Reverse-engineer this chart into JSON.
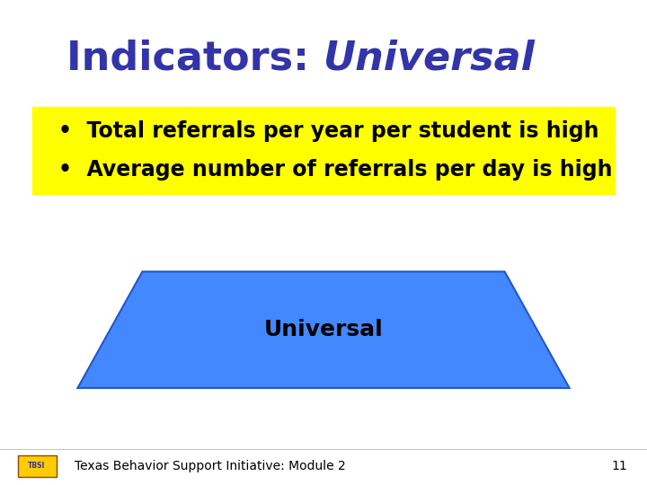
{
  "title_normal": "Indicators: ",
  "title_italic": "Universal",
  "title_color": "#3333AA",
  "title_fontsize": 32,
  "bullet1": "Total referrals per year per student is high",
  "bullet2": "Average number of referrals per day is high",
  "bullet_fontsize": 17,
  "bullet_bg_color": "#FFFF00",
  "bullet_text_color": "#000000",
  "trapezoid_color": "#4488FF",
  "trapezoid_edge_color": "#2255CC",
  "trapezoid_label": "Universal",
  "trapezoid_label_fontsize": 18,
  "trapezoid_label_color": "#000000",
  "footer_text": "Texas Behavior Support Initiative: Module 2",
  "footer_page": "11",
  "footer_fontsize": 10,
  "bg_color": "#FFFFFF"
}
